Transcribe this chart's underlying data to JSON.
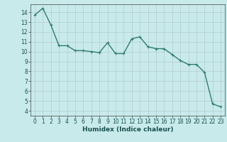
{
  "x": [
    0,
    1,
    2,
    3,
    4,
    5,
    6,
    7,
    8,
    9,
    10,
    11,
    12,
    13,
    14,
    15,
    16,
    17,
    18,
    19,
    20,
    21,
    22,
    23
  ],
  "y": [
    13.7,
    14.4,
    12.7,
    10.6,
    10.6,
    10.1,
    10.1,
    10.0,
    9.9,
    10.9,
    9.8,
    9.8,
    11.3,
    11.5,
    10.5,
    10.3,
    10.3,
    9.7,
    9.1,
    8.7,
    8.7,
    7.9,
    4.7,
    4.4
  ],
  "line_color": "#2e7d6e",
  "marker": "+",
  "marker_size": 3,
  "bg_color": "#c8eaea",
  "grid_color": "#b5cccc",
  "xlabel": "Humidex (Indice chaleur)",
  "xlim": [
    -0.5,
    23.5
  ],
  "ylim": [
    3.5,
    14.8
  ],
  "yticks": [
    4,
    5,
    6,
    7,
    8,
    9,
    10,
    11,
    12,
    13,
    14
  ],
  "xticks": [
    0,
    1,
    2,
    3,
    4,
    5,
    6,
    7,
    8,
    9,
    10,
    11,
    12,
    13,
    14,
    15,
    16,
    17,
    18,
    19,
    20,
    21,
    22,
    23
  ],
  "tick_fontsize": 5.5,
  "label_fontsize": 6.5,
  "linewidth": 1.0
}
